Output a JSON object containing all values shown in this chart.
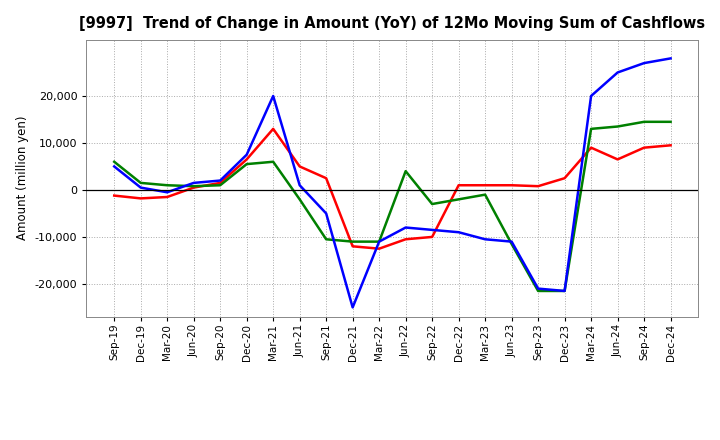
{
  "title": "[9997]  Trend of Change in Amount (YoY) of 12Mo Moving Sum of Cashflows",
  "ylabel": "Amount (million yen)",
  "background_color": "#ffffff",
  "plot_bg_color": "#ffffff",
  "x_labels": [
    "Sep-19",
    "Dec-19",
    "Mar-20",
    "Jun-20",
    "Sep-20",
    "Dec-20",
    "Mar-21",
    "Jun-21",
    "Sep-21",
    "Dec-21",
    "Mar-22",
    "Jun-22",
    "Sep-22",
    "Dec-22",
    "Mar-23",
    "Jun-23",
    "Sep-23",
    "Dec-23",
    "Mar-24",
    "Jun-24",
    "Sep-24",
    "Dec-24"
  ],
  "operating": [
    -1200,
    -1800,
    -1500,
    500,
    1500,
    6500,
    13000,
    5000,
    2500,
    -12000,
    -12500,
    -10500,
    -10000,
    1000,
    1000,
    1000,
    800,
    2500,
    9000,
    6500,
    9000,
    9500
  ],
  "investing": [
    6000,
    1500,
    1000,
    800,
    1000,
    5500,
    6000,
    -2000,
    -10500,
    -11000,
    -11000,
    4000,
    -3000,
    -2000,
    -1000,
    -11500,
    -21500,
    -21500,
    13000,
    13500,
    14500,
    14500
  ],
  "free": [
    5000,
    500,
    -500,
    1500,
    2000,
    7500,
    20000,
    1000,
    -5000,
    -25000,
    -11000,
    -8000,
    -8500,
    -9000,
    -10500,
    -11000,
    -21000,
    -21500,
    20000,
    25000,
    27000,
    28000
  ],
  "operating_color": "#ff0000",
  "investing_color": "#008000",
  "free_color": "#0000ff",
  "ylim": [
    -27000,
    32000
  ],
  "yticks": [
    -20000,
    -10000,
    0,
    10000,
    20000
  ],
  "line_width": 1.8
}
